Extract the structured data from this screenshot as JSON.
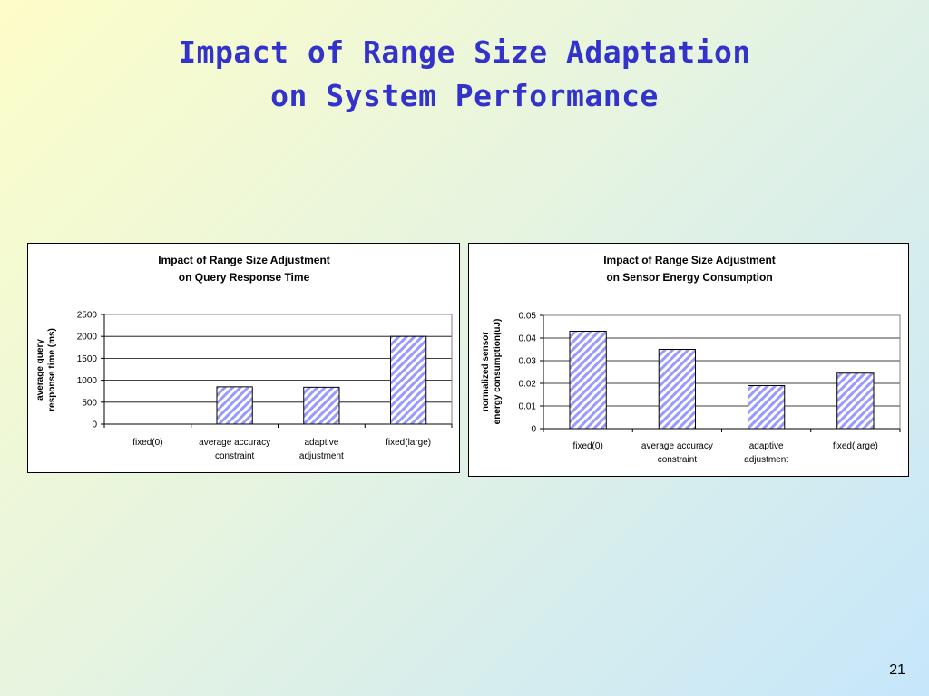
{
  "slide": {
    "title_line1": "Impact of Range Size Adaptation",
    "title_line2": "on System Performance",
    "page_number": "21"
  },
  "colors": {
    "title": "#3333cc",
    "bar_hatch": "#9999ff",
    "bar_border": "#000000"
  },
  "chart_data": [
    {
      "type": "bar",
      "title": [
        "Impact of Range Size Adjustment",
        "on Query Response Time"
      ],
      "ylabel": [
        "average query",
        "response time (ms)"
      ],
      "xlabel": "",
      "categories": [
        [
          "fixed(0)"
        ],
        [
          "average accuracy",
          "constraint"
        ],
        [
          "adaptive",
          "adjustment"
        ],
        [
          "fixed(large)"
        ]
      ],
      "values": [
        0,
        850,
        840,
        2000
      ],
      "ylim": [
        0,
        2500
      ],
      "yticks": [
        "0",
        "500",
        "1000",
        "1500",
        "2000",
        "2500"
      ],
      "grid": true,
      "legend": "none"
    },
    {
      "type": "bar",
      "title": [
        "Impact of Range Size Adjustment",
        "on Sensor Energy Consumption"
      ],
      "ylabel": [
        "normalized sensor",
        "energy consumption(uJ)"
      ],
      "xlabel": "",
      "categories": [
        [
          "fixed(0)"
        ],
        [
          "average accuracy",
          "constraint"
        ],
        [
          "adaptive",
          "adjustment"
        ],
        [
          "fixed(large)"
        ]
      ],
      "values": [
        0.043,
        0.035,
        0.019,
        0.0245
      ],
      "ylim": [
        0,
        0.05
      ],
      "yticks": [
        "0",
        "0.01",
        "0.02",
        "0.03",
        "0.04",
        "0.05"
      ],
      "grid": true,
      "legend": "none"
    }
  ]
}
